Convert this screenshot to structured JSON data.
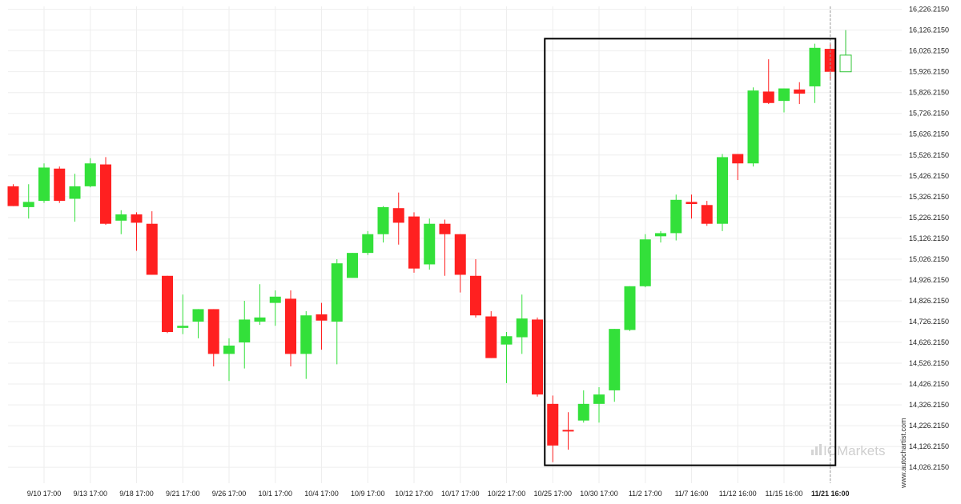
{
  "chart_data": {
    "type": "candlestick",
    "y_ticks": [
      "16,226.2150",
      "16,126.2150",
      "16,026.2150",
      "15,926.2150",
      "15,826.2150",
      "15,726.2150",
      "15,626.2150",
      "15,526.2150",
      "15,426.2150",
      "15,326.2150",
      "15,226.2150",
      "15,126.2150",
      "15,026.2150",
      "14,926.2150",
      "14,826.2150",
      "14,726.2150",
      "14,626.2150",
      "14,526.2150",
      "14,426.2150",
      "14,326.2150",
      "14,226.2150",
      "14,126.2150",
      "14,026.2150"
    ],
    "ylim": [
      13950,
      16240
    ],
    "x_ticks": [
      {
        "label": "9/10 17:00",
        "index": 2
      },
      {
        "label": "9/13 17:00",
        "index": 5
      },
      {
        "label": "9/18 17:00",
        "index": 8
      },
      {
        "label": "9/21 17:00",
        "index": 11
      },
      {
        "label": "9/26 17:00",
        "index": 14
      },
      {
        "label": "10/1 17:00",
        "index": 17
      },
      {
        "label": "10/4 17:00",
        "index": 20
      },
      {
        "label": "10/9 17:00",
        "index": 23
      },
      {
        "label": "10/12 17:00",
        "index": 26
      },
      {
        "label": "10/17 17:00",
        "index": 29
      },
      {
        "label": "10/22 17:00",
        "index": 32
      },
      {
        "label": "10/25 17:00",
        "index": 35
      },
      {
        "label": "10/30 17:00",
        "index": 38
      },
      {
        "label": "11/2 17:00",
        "index": 41
      },
      {
        "label": "11/7 16:00",
        "index": 44
      },
      {
        "label": "11/12 16:00",
        "index": 47
      },
      {
        "label": "11/15 16:00",
        "index": 50
      },
      {
        "label": "11/21 16:00",
        "index": 53,
        "bold": true
      }
    ],
    "candles": [
      {
        "o": 15376,
        "h": 15386,
        "l": 15281,
        "c": 15281
      },
      {
        "o": 15276,
        "h": 15386,
        "l": 15221,
        "c": 15301
      },
      {
        "o": 15306,
        "h": 15486,
        "l": 15296,
        "c": 15466
      },
      {
        "o": 15461,
        "h": 15471,
        "l": 15296,
        "c": 15306
      },
      {
        "o": 15316,
        "h": 15436,
        "l": 15206,
        "c": 15376
      },
      {
        "o": 15376,
        "h": 15511,
        "l": 15371,
        "c": 15486
      },
      {
        "o": 15481,
        "h": 15516,
        "l": 15191,
        "c": 15196
      },
      {
        "o": 15211,
        "h": 15261,
        "l": 15146,
        "c": 15241
      },
      {
        "o": 15241,
        "h": 15251,
        "l": 15066,
        "c": 15201
      },
      {
        "o": 15196,
        "h": 15256,
        "l": 14951,
        "c": 14951
      },
      {
        "o": 14946,
        "h": 14946,
        "l": 14671,
        "c": 14676
      },
      {
        "o": 14696,
        "h": 14856,
        "l": 14666,
        "c": 14706
      },
      {
        "o": 14726,
        "h": 14786,
        "l": 14646,
        "c": 14786
      },
      {
        "o": 14786,
        "h": 14786,
        "l": 14511,
        "c": 14571
      },
      {
        "o": 14571,
        "h": 14646,
        "l": 14441,
        "c": 14611
      },
      {
        "o": 14626,
        "h": 14826,
        "l": 14501,
        "c": 14736
      },
      {
        "o": 14726,
        "h": 14906,
        "l": 14711,
        "c": 14746
      },
      {
        "o": 14816,
        "h": 14876,
        "l": 14706,
        "c": 14846
      },
      {
        "o": 14836,
        "h": 14876,
        "l": 14511,
        "c": 14571
      },
      {
        "o": 14571,
        "h": 14776,
        "l": 14451,
        "c": 14756
      },
      {
        "o": 14761,
        "h": 14816,
        "l": 14591,
        "c": 14731
      },
      {
        "o": 14726,
        "h": 15026,
        "l": 14521,
        "c": 15006
      },
      {
        "o": 14936,
        "h": 15056,
        "l": 14936,
        "c": 15056
      },
      {
        "o": 15056,
        "h": 15161,
        "l": 15046,
        "c": 15146
      },
      {
        "o": 15146,
        "h": 15281,
        "l": 15106,
        "c": 15276
      },
      {
        "o": 15271,
        "h": 15346,
        "l": 15096,
        "c": 15201
      },
      {
        "o": 15231,
        "h": 15251,
        "l": 14961,
        "c": 14981
      },
      {
        "o": 15001,
        "h": 15221,
        "l": 14976,
        "c": 15196
      },
      {
        "o": 15196,
        "h": 15216,
        "l": 14946,
        "c": 15146
      },
      {
        "o": 15146,
        "h": 15146,
        "l": 14866,
        "c": 14951
      },
      {
        "o": 14946,
        "h": 15026,
        "l": 14746,
        "c": 14756
      },
      {
        "o": 14751,
        "h": 14776,
        "l": 14551,
        "c": 14551
      },
      {
        "o": 14616,
        "h": 14676,
        "l": 14431,
        "c": 14656
      },
      {
        "o": 14651,
        "h": 14856,
        "l": 14571,
        "c": 14741
      },
      {
        "o": 14736,
        "h": 14746,
        "l": 14366,
        "c": 14376
      },
      {
        "o": 14331,
        "h": 14371,
        "l": 14051,
        "c": 14131
      },
      {
        "o": 14206,
        "h": 14291,
        "l": 14111,
        "c": 14201
      },
      {
        "o": 14251,
        "h": 14396,
        "l": 14241,
        "c": 14331
      },
      {
        "o": 14331,
        "h": 14411,
        "l": 14241,
        "c": 14376
      },
      {
        "o": 14396,
        "h": 14691,
        "l": 14341,
        "c": 14691
      },
      {
        "o": 14686,
        "h": 14896,
        "l": 14681,
        "c": 14896
      },
      {
        "o": 14896,
        "h": 15146,
        "l": 14891,
        "c": 15121
      },
      {
        "o": 15136,
        "h": 15161,
        "l": 15106,
        "c": 15151
      },
      {
        "o": 15151,
        "h": 15336,
        "l": 15116,
        "c": 15311
      },
      {
        "o": 15301,
        "h": 15336,
        "l": 15221,
        "c": 15291
      },
      {
        "o": 15286,
        "h": 15306,
        "l": 15186,
        "c": 15196
      },
      {
        "o": 15196,
        "h": 15531,
        "l": 15161,
        "c": 15516
      },
      {
        "o": 15531,
        "h": 15531,
        "l": 15406,
        "c": 15486
      },
      {
        "o": 15486,
        "h": 15851,
        "l": 15471,
        "c": 15836
      },
      {
        "o": 15831,
        "h": 15986,
        "l": 15771,
        "c": 15776
      },
      {
        "o": 15786,
        "h": 15846,
        "l": 15731,
        "c": 15846
      },
      {
        "o": 15841,
        "h": 15876,
        "l": 15771,
        "c": 15821
      },
      {
        "o": 15856,
        "h": 16061,
        "l": 15776,
        "c": 16041
      },
      {
        "o": 16036,
        "h": 16061,
        "l": 15886,
        "c": 15926
      },
      {
        "o": 15926,
        "h": 16126,
        "l": 15926,
        "c": 16006
      }
    ],
    "colors": {
      "up": "#33e03a",
      "down": "#ff2020",
      "last": "#ffffff",
      "last_border": "#2fc436",
      "grid": "#eeeeee",
      "box": "#000000"
    },
    "highlight": {
      "start_index": 35,
      "end_index": 53,
      "top_value": 16085,
      "bottom_value": 14036
    },
    "current_marker_index": 53,
    "watermark": "ICMarkets",
    "source": "www.autochartist.com"
  }
}
